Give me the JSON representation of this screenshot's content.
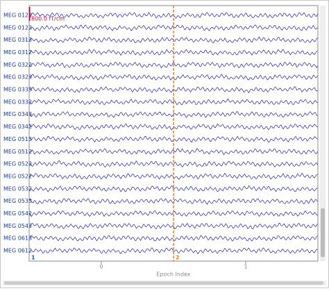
{
  "chart_data": {
    "type": "epochs",
    "channels": [
      "MEG 0122",
      "MEG 0123",
      "MEG 0313",
      "MEG 0312",
      "MEG 0322",
      "MEG 0323",
      "MEG 0333",
      "MEG 0332",
      "MEG 0343",
      "MEG 0342",
      "MEG 0513",
      "MEG 0512",
      "MEG 0523",
      "MEG 0522",
      "MEG 0532",
      "MEG 0533",
      "MEG 0542",
      "MEG 0543",
      "MEG 0613",
      "MEG 0612"
    ],
    "epochs": [
      1,
      2
    ],
    "epoch_colors": [
      "#1f5fb4",
      "#d9822b"
    ],
    "trace_color": "#1c1cb0",
    "scale_label": "800.0 fT/cm",
    "scale_color": "#b0103a",
    "xlabel": "Epoch Index",
    "xlim": [
      -0.5,
      1.5
    ],
    "xticks": [
      0,
      1
    ]
  }
}
